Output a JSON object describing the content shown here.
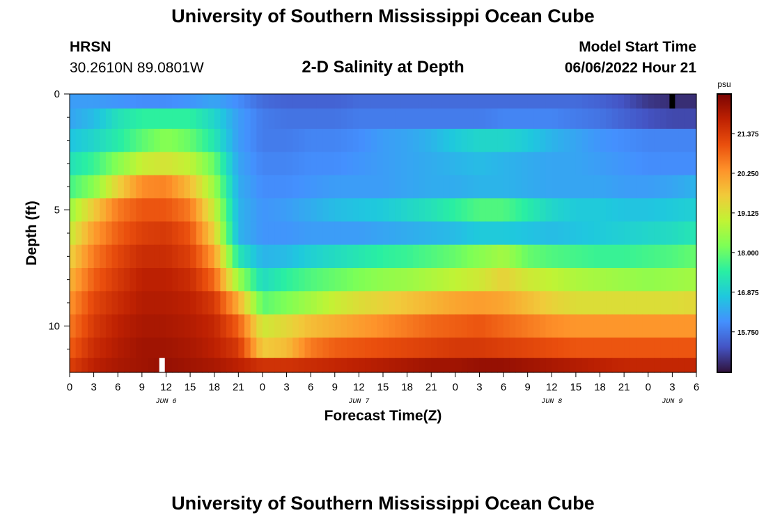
{
  "header": {
    "title": "University of Southern Mississippi Ocean Cube",
    "station": "HRSN",
    "coords": "30.2610N  89.0801W",
    "plot_title": "2-D Salinity at Depth",
    "model_label": "Model Start Time",
    "model_time": "06/06/2022 Hour 21"
  },
  "footer": {
    "title": "University of Southern Mississippi Ocean Cube"
  },
  "colors": {
    "colormap": [
      "#30123b",
      "#4454c4",
      "#4490fe",
      "#1fc8de",
      "#29efa2",
      "#7dff56",
      "#c1f334",
      "#f1ca3a",
      "#fe922a",
      "#ea4f0d",
      "#be2102",
      "#7a0403"
    ]
  },
  "chart_data": {
    "type": "heatmap",
    "title": "2-D Salinity at Depth",
    "xlabel": "Forecast Time(Z)",
    "ylabel": "Depth (ft)",
    "x_range_hours": [
      0,
      78
    ],
    "x_tick_hours": [
      0,
      3,
      6,
      9,
      12,
      15,
      18,
      21,
      24,
      27,
      30,
      33,
      36,
      39,
      42,
      45,
      48,
      51,
      54,
      57,
      60,
      63,
      66,
      69,
      72,
      75,
      78
    ],
    "x_tick_labels": [
      "0",
      "3",
      "6",
      "9",
      "12",
      "15",
      "18",
      "21",
      "0",
      "3",
      "6",
      "9",
      "12",
      "15",
      "18",
      "21",
      "0",
      "3",
      "6",
      "9",
      "12",
      "15",
      "18",
      "21",
      "0",
      "3",
      "6"
    ],
    "day_labels": [
      {
        "label": "JUN 6",
        "hour": 12
      },
      {
        "label": "JUN 7",
        "hour": 36
      },
      {
        "label": "JUN 8",
        "hour": 60
      },
      {
        "label": "JUN 9",
        "hour": 75
      }
    ],
    "y_range_ft": [
      0,
      12
    ],
    "y_tick_values": [
      0,
      5,
      10
    ],
    "y_tick_labels": [
      "0",
      "5",
      "10"
    ],
    "y_minor_tick_values": [
      1,
      2,
      3,
      4,
      6,
      7,
      8,
      9,
      11
    ],
    "depth_layers_ft": [
      0.25,
      1,
      2,
      3,
      4,
      5,
      6,
      7,
      8,
      9,
      10,
      11,
      11.75
    ],
    "anchor_hours": [
      0,
      3,
      6,
      9,
      12,
      15,
      18,
      21,
      24,
      27,
      30,
      33,
      36,
      39,
      42,
      45,
      48,
      51,
      54,
      57,
      60,
      63,
      66,
      69,
      72,
      75,
      78
    ],
    "salinity_psu": [
      [
        16.2,
        16.2,
        16.1,
        16.0,
        16.0,
        16.1,
        16.3,
        16.0,
        15.6,
        15.5,
        15.5,
        15.5,
        15.6,
        15.6,
        15.6,
        15.6,
        15.6,
        15.6,
        15.6,
        15.6,
        15.6,
        15.6,
        15.5,
        15.3,
        15.0,
        14.9,
        14.9
      ],
      [
        16.3,
        16.6,
        17.2,
        17.5,
        17.5,
        17.5,
        17.0,
        16.2,
        15.8,
        15.7,
        15.7,
        15.7,
        15.8,
        15.8,
        15.8,
        15.8,
        15.8,
        15.8,
        15.9,
        15.9,
        15.9,
        15.8,
        15.7,
        15.5,
        15.3,
        15.2,
        15.2
      ],
      [
        16.7,
        17.0,
        17.4,
        17.9,
        18.3,
        18.0,
        17.3,
        16.2,
        15.8,
        15.8,
        15.9,
        15.9,
        16.0,
        16.2,
        16.3,
        16.5,
        16.8,
        17.0,
        17.0,
        16.8,
        16.5,
        16.3,
        16.1,
        16.0,
        15.9,
        15.9,
        15.9
      ],
      [
        17.2,
        17.6,
        18.3,
        19.0,
        19.2,
        18.9,
        18.0,
        16.3,
        15.9,
        15.9,
        16.0,
        16.0,
        16.1,
        16.2,
        16.3,
        16.4,
        16.5,
        16.6,
        16.5,
        16.4,
        16.3,
        16.3,
        16.2,
        16.1,
        16.0,
        16.0,
        16.0
      ],
      [
        17.7,
        18.3,
        19.5,
        20.4,
        20.5,
        19.8,
        18.5,
        16.4,
        16.0,
        16.0,
        16.1,
        16.2,
        16.2,
        16.2,
        16.3,
        16.4,
        16.4,
        16.5,
        16.5,
        16.4,
        16.3,
        16.3,
        16.3,
        16.2,
        16.2,
        16.3,
        16.5
      ],
      [
        18.5,
        19.6,
        20.6,
        21.0,
        21.0,
        20.6,
        19.0,
        16.5,
        16.1,
        16.2,
        16.4,
        16.6,
        16.7,
        16.8,
        17.0,
        17.2,
        17.5,
        17.8,
        17.8,
        17.4,
        17.0,
        16.8,
        16.8,
        16.7,
        16.7,
        16.8,
        16.9
      ],
      [
        19.0,
        20.2,
        20.9,
        21.3,
        21.4,
        21.0,
        19.5,
        16.5,
        16.1,
        16.1,
        16.2,
        16.2,
        16.2,
        16.3,
        16.4,
        16.5,
        16.6,
        16.8,
        16.8,
        16.7,
        16.6,
        16.7,
        16.8,
        16.9,
        17.0,
        17.1,
        17.3
      ],
      [
        19.5,
        20.6,
        21.2,
        21.6,
        21.6,
        21.3,
        20.2,
        17.3,
        16.5,
        16.6,
        16.9,
        17.1,
        17.3,
        17.5,
        17.6,
        17.8,
        18.0,
        18.3,
        18.6,
        18.0,
        17.8,
        17.7,
        17.6,
        17.6,
        17.7,
        17.8,
        18.0
      ],
      [
        19.9,
        20.9,
        21.4,
        21.8,
        21.8,
        21.6,
        20.8,
        18.5,
        17.1,
        17.5,
        17.8,
        18.0,
        18.2,
        18.4,
        18.5,
        18.7,
        18.9,
        19.1,
        19.5,
        19.1,
        18.9,
        18.7,
        18.6,
        18.5,
        18.4,
        18.5,
        18.6
      ],
      [
        20.3,
        21.2,
        21.6,
        21.9,
        21.9,
        21.8,
        21.4,
        20.0,
        17.9,
        18.2,
        18.6,
        19.0,
        19.3,
        19.5,
        19.7,
        19.9,
        20.1,
        20.2,
        20.1,
        19.8,
        19.5,
        19.3,
        19.3,
        19.3,
        19.3,
        19.3,
        19.4
      ],
      [
        20.6,
        21.4,
        21.8,
        22.0,
        22.0,
        21.9,
        21.7,
        20.9,
        19.1,
        19.4,
        19.8,
        20.0,
        20.2,
        20.4,
        20.6,
        20.8,
        20.9,
        21.0,
        20.8,
        20.6,
        20.4,
        20.3,
        20.3,
        20.3,
        20.3,
        20.3,
        20.3
      ],
      [
        20.9,
        21.6,
        21.9,
        22.1,
        22.1,
        22.0,
        21.8,
        21.4,
        19.6,
        19.8,
        20.6,
        20.9,
        21.0,
        21.1,
        21.2,
        21.3,
        21.4,
        21.4,
        21.3,
        21.2,
        21.1,
        21.0,
        21.0,
        21.0,
        21.0,
        21.0,
        21.0
      ],
      [
        21.3,
        21.8,
        22.0,
        22.1,
        22.2,
        22.1,
        22.0,
        21.8,
        21.5,
        21.5,
        21.6,
        21.7,
        21.8,
        21.9,
        22.0,
        22.1,
        22.1,
        22.2,
        22.2,
        22.1,
        22.0,
        21.9,
        21.8,
        21.7,
        21.7,
        21.7,
        21.7
      ]
    ],
    "markers": [
      {
        "hour": 11.5,
        "depth": 11.75,
        "color": "#ffffff"
      },
      {
        "hour": 75.0,
        "depth": 0.25,
        "color": "#000000"
      }
    ],
    "colorbar": {
      "unit": "psu",
      "range": [
        14.6,
        22.5
      ],
      "tick_values": [
        15.75,
        16.875,
        18.0,
        19.125,
        20.25,
        21.375
      ],
      "tick_labels": [
        "15.750",
        "16.875",
        "18.000",
        "19.125",
        "20.250",
        "21.375"
      ]
    }
  }
}
